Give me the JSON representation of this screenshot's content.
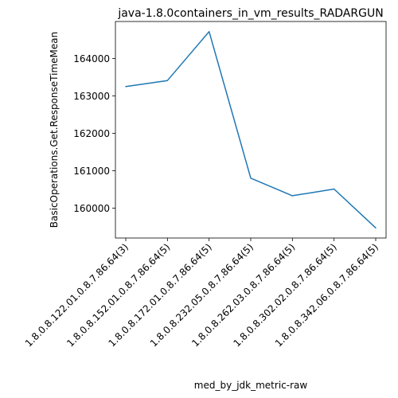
{
  "chart_data": {
    "type": "line",
    "title": "java-1.8.0containers_in_vm_results_RADARGUN",
    "xlabel": "med_by_jdk_metric-raw",
    "ylabel": "BasicOperations.Get.ResponseTimeMean",
    "categories": [
      "1.8.0.8.122.01.0.8.7.86.64(3)",
      "1.8.0.8.152.01.0.8.7.86.64(5)",
      "1.8.0.8.172.01.0.8.7.86.64(5)",
      "1.8.0.8.232.05.0.8.7.86.64(5)",
      "1.8.0.8.262.03.0.8.7.86.64(5)",
      "1.8.0.8.302.02.0.8.7.86.64(5)",
      "1.8.0.8.342.06.0.8.7.86.64(5)"
    ],
    "series": [
      {
        "values": [
          163250,
          163410,
          164720,
          160800,
          160330,
          160510,
          159470
        ]
      }
    ],
    "yticks": [
      160000,
      161000,
      162000,
      163000,
      164000
    ],
    "ylim": [
      159200,
      164990
    ],
    "grid": false,
    "colors": {
      "line": "#1f77b4"
    }
  }
}
